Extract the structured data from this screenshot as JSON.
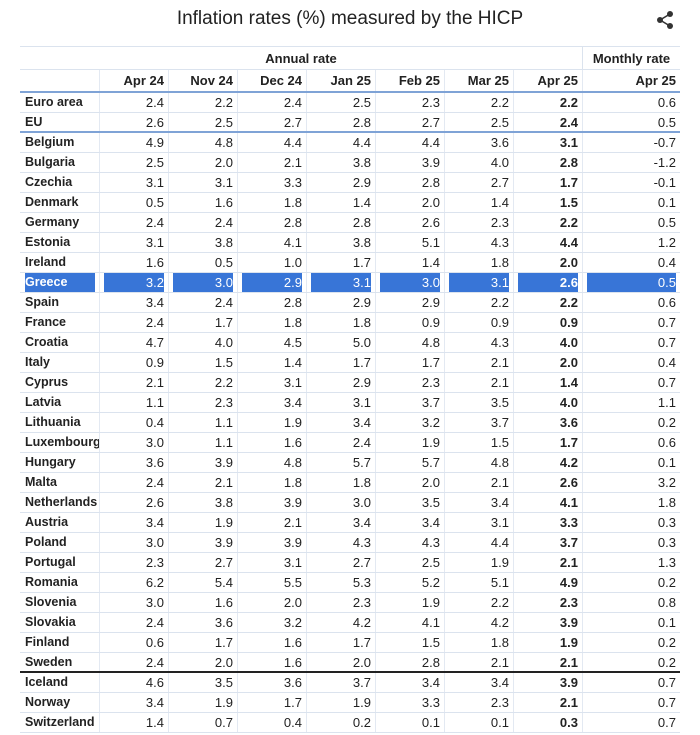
{
  "title": "Inflation rates (%) measured by the HICP",
  "table": {
    "groups": [
      "Annual rate",
      "Monthly rate"
    ],
    "columns": [
      "Apr 24",
      "Nov 24",
      "Dec 24",
      "Jan 25",
      "Feb 25",
      "Mar 25",
      "Apr 25",
      "Apr 25"
    ],
    "rows": [
      [
        "Euro area",
        "2.4",
        "2.2",
        "2.4",
        "2.5",
        "2.3",
        "2.2",
        "2.2",
        "0.6"
      ],
      [
        "EU",
        "2.6",
        "2.5",
        "2.7",
        "2.8",
        "2.7",
        "2.5",
        "2.4",
        "0.5"
      ],
      [
        "Belgium",
        "4.9",
        "4.8",
        "4.4",
        "4.4",
        "4.4",
        "3.6",
        "3.1",
        "-0.7"
      ],
      [
        "Bulgaria",
        "2.5",
        "2.0",
        "2.1",
        "3.8",
        "3.9",
        "4.0",
        "2.8",
        "-1.2"
      ],
      [
        "Czechia",
        "3.1",
        "3.1",
        "3.3",
        "2.9",
        "2.8",
        "2.7",
        "1.7",
        "-0.1"
      ],
      [
        "Denmark",
        "0.5",
        "1.6",
        "1.8",
        "1.4",
        "2.0",
        "1.4",
        "1.5",
        "0.1"
      ],
      [
        "Germany",
        "2.4",
        "2.4",
        "2.8",
        "2.8",
        "2.6",
        "2.3",
        "2.2",
        "0.5"
      ],
      [
        "Estonia",
        "3.1",
        "3.8",
        "4.1",
        "3.8",
        "5.1",
        "4.3",
        "4.4",
        "1.2"
      ],
      [
        "Ireland",
        "1.6",
        "0.5",
        "1.0",
        "1.7",
        "1.4",
        "1.8",
        "2.0",
        "0.4"
      ],
      [
        "Greece",
        "3.2",
        "3.0",
        "2.9",
        "3.1",
        "3.0",
        "3.1",
        "2.6",
        "0.5"
      ],
      [
        "Spain",
        "3.4",
        "2.4",
        "2.8",
        "2.9",
        "2.9",
        "2.2",
        "2.2",
        "0.6"
      ],
      [
        "France",
        "2.4",
        "1.7",
        "1.8",
        "1.8",
        "0.9",
        "0.9",
        "0.9",
        "0.7"
      ],
      [
        "Croatia",
        "4.7",
        "4.0",
        "4.5",
        "5.0",
        "4.8",
        "4.3",
        "4.0",
        "0.7"
      ],
      [
        "Italy",
        "0.9",
        "1.5",
        "1.4",
        "1.7",
        "1.7",
        "2.1",
        "2.0",
        "0.4"
      ],
      [
        "Cyprus",
        "2.1",
        "2.2",
        "3.1",
        "2.9",
        "2.3",
        "2.1",
        "1.4",
        "0.7"
      ],
      [
        "Latvia",
        "1.1",
        "2.3",
        "3.4",
        "3.1",
        "3.7",
        "3.5",
        "4.0",
        "1.1"
      ],
      [
        "Lithuania",
        "0.4",
        "1.1",
        "1.9",
        "3.4",
        "3.2",
        "3.7",
        "3.6",
        "0.2"
      ],
      [
        "Luxembourg",
        "3.0",
        "1.1",
        "1.6",
        "2.4",
        "1.9",
        "1.5",
        "1.7",
        "0.6"
      ],
      [
        "Hungary",
        "3.6",
        "3.9",
        "4.8",
        "5.7",
        "5.7",
        "4.8",
        "4.2",
        "0.1"
      ],
      [
        "Malta",
        "2.4",
        "2.1",
        "1.8",
        "1.8",
        "2.0",
        "2.1",
        "2.6",
        "3.2"
      ],
      [
        "Netherlands",
        "2.6",
        "3.8",
        "3.9",
        "3.0",
        "3.5",
        "3.4",
        "4.1",
        "1.8"
      ],
      [
        "Austria",
        "3.4",
        "1.9",
        "2.1",
        "3.4",
        "3.4",
        "3.1",
        "3.3",
        "0.3"
      ],
      [
        "Poland",
        "3.0",
        "3.9",
        "3.9",
        "4.3",
        "4.3",
        "4.4",
        "3.7",
        "0.3"
      ],
      [
        "Portugal",
        "2.3",
        "2.7",
        "3.1",
        "2.7",
        "2.5",
        "1.9",
        "2.1",
        "1.3"
      ],
      [
        "Romania",
        "6.2",
        "5.4",
        "5.5",
        "5.3",
        "5.2",
        "5.1",
        "4.9",
        "0.2"
      ],
      [
        "Slovenia",
        "3.0",
        "1.6",
        "2.0",
        "2.3",
        "1.9",
        "2.2",
        "2.3",
        "0.8"
      ],
      [
        "Slovakia",
        "2.4",
        "3.6",
        "3.2",
        "4.2",
        "4.1",
        "4.2",
        "3.9",
        "0.1"
      ],
      [
        "Finland",
        "0.6",
        "1.7",
        "1.6",
        "1.7",
        "1.5",
        "1.8",
        "1.9",
        "0.2"
      ],
      [
        "Sweden",
        "2.4",
        "2.0",
        "1.6",
        "2.0",
        "2.8",
        "2.1",
        "2.1",
        "0.2"
      ],
      [
        "Iceland",
        "4.6",
        "3.5",
        "3.6",
        "3.7",
        "3.4",
        "3.4",
        "3.9",
        "0.7"
      ],
      [
        "Norway",
        "3.4",
        "1.9",
        "1.7",
        "1.9",
        "3.3",
        "2.3",
        "2.1",
        "0.7"
      ],
      [
        "Switzerland",
        "1.4",
        "0.7",
        "0.4",
        "0.2",
        "0.1",
        "0.1",
        "0.3",
        "0.7"
      ]
    ]
  }
}
